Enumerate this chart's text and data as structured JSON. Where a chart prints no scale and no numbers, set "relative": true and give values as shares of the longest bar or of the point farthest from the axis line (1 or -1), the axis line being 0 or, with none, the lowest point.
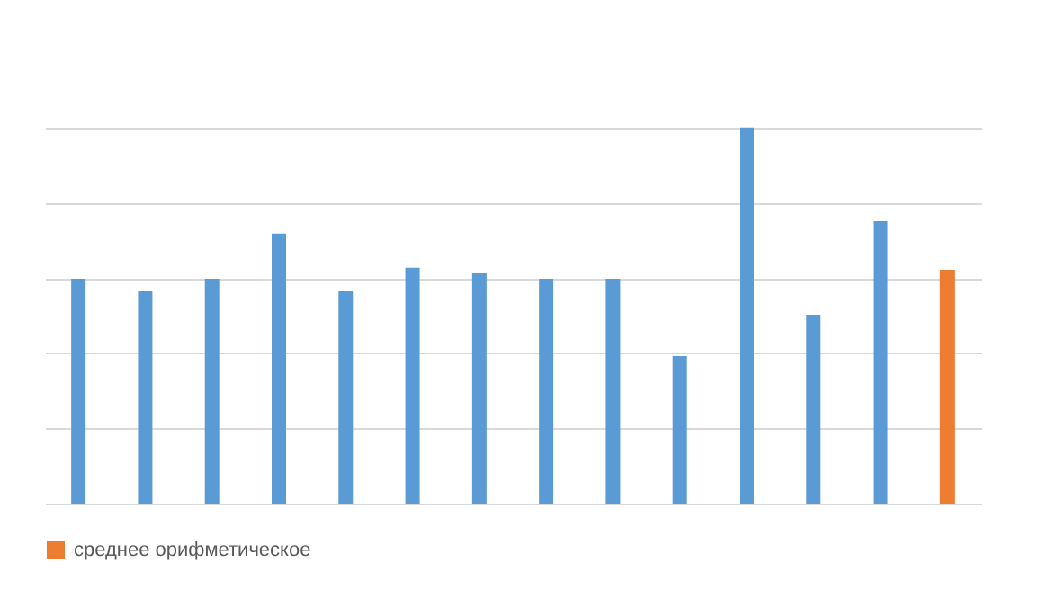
{
  "chart_data": {
    "type": "bar",
    "relative": true,
    "stacked": true,
    "categories": [
      null,
      null,
      null,
      null,
      null,
      null,
      null,
      null,
      null,
      null,
      null,
      null,
      null,
      null
    ],
    "series": [
      {
        "color": "#5b9bd5",
        "values": [
          0.598,
          0.565,
          0.598,
          0.718,
          0.565,
          0.627,
          0.612,
          0.598,
          0.598,
          0.392,
          1,
          0.502,
          0.751,
          null
        ]
      },
      {
        "name": "среднее орифметическое",
        "color": "#ed7d31",
        "values": [
          null,
          null,
          null,
          null,
          null,
          null,
          null,
          null,
          null,
          null,
          null,
          null,
          null,
          0.622
        ]
      }
    ],
    "grid": "y",
    "legend": "bottom"
  }
}
